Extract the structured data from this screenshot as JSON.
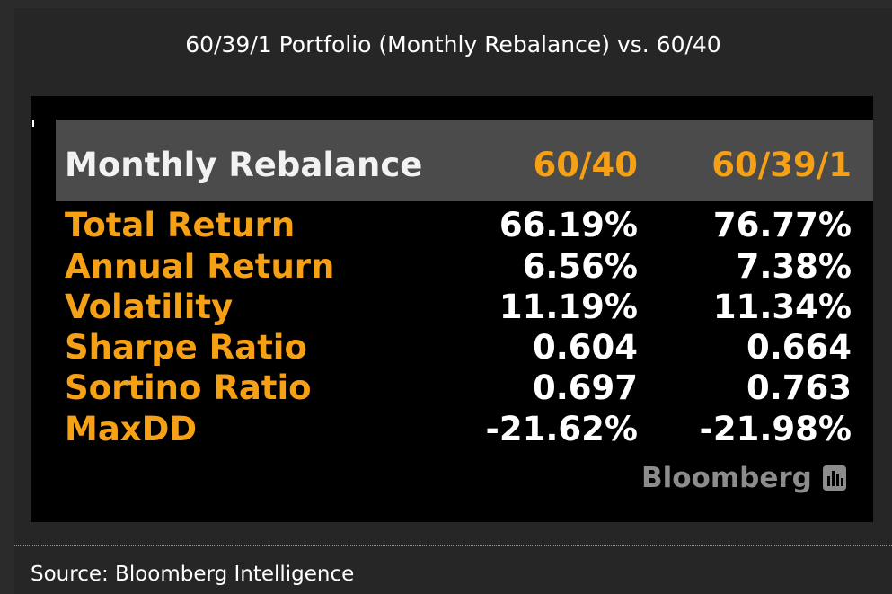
{
  "header": {
    "title": "60/39/1 Portfolio (Monthly Rebalance) vs. 60/40"
  },
  "chart_data": {
    "type": "table",
    "corner_label": "Monthly Rebalance",
    "columns": [
      "60/40",
      "60/39/1"
    ],
    "rows": [
      {
        "label": "Total Return",
        "values": [
          "66.19%",
          "76.77%"
        ]
      },
      {
        "label": "Annual Return",
        "values": [
          "6.56%",
          "7.38%"
        ]
      },
      {
        "label": "Volatility",
        "values": [
          "11.19%",
          "11.34%"
        ]
      },
      {
        "label": "Sharpe Ratio",
        "values": [
          "0.604",
          "0.664"
        ]
      },
      {
        "label": "Sortino Ratio",
        "values": [
          "0.697",
          "0.763"
        ]
      },
      {
        "label": "MaxDD",
        "values": [
          "-21.62%",
          "-21.98%"
        ]
      }
    ]
  },
  "watermark": {
    "text": "Bloomberg",
    "icon": "bloomberg-bars-icon"
  },
  "footer": {
    "source": "Source: Bloomberg Intelligence"
  },
  "colors": {
    "accent": "#f5a015",
    "header_bg": "#4b4b4b",
    "panel_bg": "#000000"
  }
}
